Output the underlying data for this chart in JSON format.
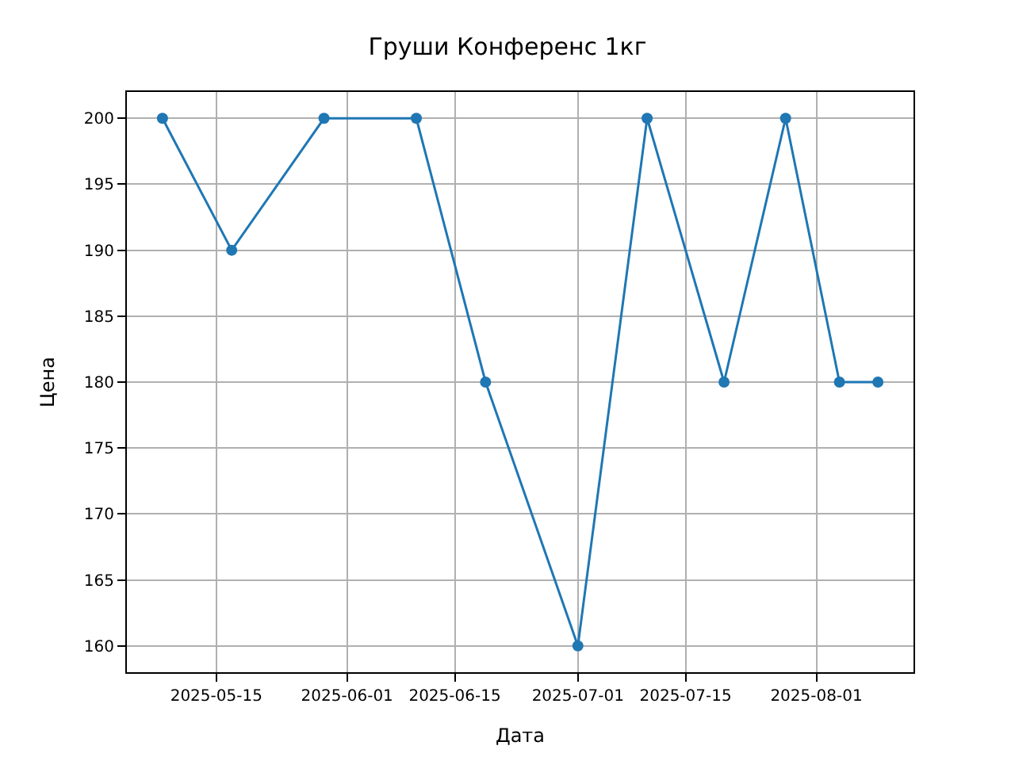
{
  "chart_data": {
    "type": "line",
    "title": "Груши Конференс 1кг",
    "xlabel": "Дата",
    "ylabel": "Цена",
    "x": [
      "2025-05-08",
      "2025-05-17",
      "2025-05-29",
      "2025-06-10",
      "2025-06-19",
      "2025-07-01",
      "2025-07-10",
      "2025-07-20",
      "2025-07-28",
      "2025-08-04",
      "2025-08-09"
    ],
    "series": [
      {
        "color": "#1f77b4",
        "values": [
          200,
          190,
          200,
          200,
          180,
          160,
          200,
          180,
          200,
          180,
          180
        ]
      }
    ],
    "xlim": [
      "2025-05-03T09:00",
      "2025-08-13T15:00"
    ],
    "xticks": [
      "2025-05-15",
      "2025-06-01",
      "2025-06-15",
      "2025-07-01",
      "2025-07-15",
      "2025-08-01"
    ],
    "ylim": [
      158,
      202
    ],
    "yticks": [
      160,
      165,
      170,
      175,
      180,
      185,
      190,
      195,
      200
    ],
    "grid": true,
    "marker": "circle",
    "line_style": "solid"
  }
}
